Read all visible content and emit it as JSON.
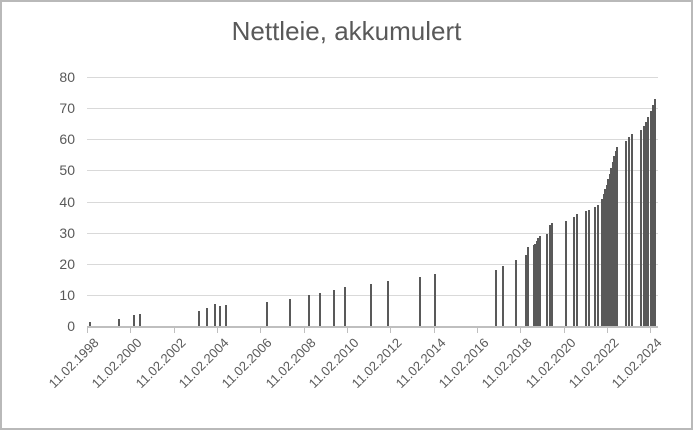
{
  "frame": {
    "background": "#ffffff",
    "border_color": "#b9b9b9"
  },
  "colors": {
    "title": "#595959",
    "axis_labels": "#595959",
    "gridline": "#d9d9d9",
    "axis_line": "#bfbfbf",
    "bar": "#595959"
  },
  "chart_data": {
    "type": "bar",
    "title": "Nettleie, akkumulert",
    "xlabel": "",
    "ylabel": "",
    "legend": "none",
    "grid": "horizontal",
    "ylim": [
      0,
      80
    ],
    "yticks": [
      0,
      10,
      20,
      30,
      40,
      50,
      60,
      70,
      80
    ],
    "x_axis_type": "date",
    "x_tick_labels": [
      "11.02.1998",
      "11.02.2000",
      "11.02.2002",
      "11.02.2004",
      "11.02.2006",
      "11.02.2008",
      "11.02.2010",
      "11.02.2012",
      "11.02.2014",
      "11.02.2016",
      "11.02.2018",
      "11.02.2020",
      "11.02.2022",
      "11.02.2024"
    ],
    "x_tick_interval_years": 2,
    "x_axis_start_year": 1998.12,
    "points_note": "year is decimal-year position estimated from axis; value is accumulated nettleie read from gridlines",
    "points": [
      {
        "year": 1998.25,
        "value": 1.3
      },
      {
        "year": 1999.6,
        "value": 2.4
      },
      {
        "year": 2000.3,
        "value": 3.4
      },
      {
        "year": 2000.58,
        "value": 4.0
      },
      {
        "year": 2003.28,
        "value": 4.9
      },
      {
        "year": 2003.65,
        "value": 5.7
      },
      {
        "year": 2004.02,
        "value": 7.0
      },
      {
        "year": 2004.28,
        "value": 6.3
      },
      {
        "year": 2004.55,
        "value": 6.8
      },
      {
        "year": 2006.42,
        "value": 7.8
      },
      {
        "year": 2007.48,
        "value": 8.6
      },
      {
        "year": 2008.35,
        "value": 9.8
      },
      {
        "year": 2008.87,
        "value": 10.7
      },
      {
        "year": 2009.52,
        "value": 11.6
      },
      {
        "year": 2010.02,
        "value": 12.4
      },
      {
        "year": 2011.22,
        "value": 13.4
      },
      {
        "year": 2012.0,
        "value": 14.3
      },
      {
        "year": 2013.48,
        "value": 15.9
      },
      {
        "year": 2014.18,
        "value": 16.8
      },
      {
        "year": 2017.0,
        "value": 18.1
      },
      {
        "year": 2017.32,
        "value": 19.2
      },
      {
        "year": 2017.93,
        "value": 21.3
      },
      {
        "year": 2018.38,
        "value": 22.7
      },
      {
        "year": 2018.47,
        "value": 25.3
      },
      {
        "year": 2018.73,
        "value": 25.9
      },
      {
        "year": 2018.8,
        "value": 26.5
      },
      {
        "year": 2018.87,
        "value": 27.3
      },
      {
        "year": 2018.94,
        "value": 28.2
      },
      {
        "year": 2019.01,
        "value": 28.8
      },
      {
        "year": 2019.35,
        "value": 29.7
      },
      {
        "year": 2019.49,
        "value": 32.3
      },
      {
        "year": 2019.56,
        "value": 33.0
      },
      {
        "year": 2020.23,
        "value": 33.6
      },
      {
        "year": 2020.6,
        "value": 35.0
      },
      {
        "year": 2020.74,
        "value": 35.9
      },
      {
        "year": 2021.15,
        "value": 36.8
      },
      {
        "year": 2021.3,
        "value": 37.4
      },
      {
        "year": 2021.58,
        "value": 38.2
      },
      {
        "year": 2021.69,
        "value": 38.9
      },
      {
        "year": 2021.9,
        "value": 40.8
      },
      {
        "year": 2021.97,
        "value": 42.3
      },
      {
        "year": 2022.04,
        "value": 43.9
      },
      {
        "year": 2022.11,
        "value": 45.4
      },
      {
        "year": 2022.18,
        "value": 47.1
      },
      {
        "year": 2022.25,
        "value": 48.9
      },
      {
        "year": 2022.32,
        "value": 50.8
      },
      {
        "year": 2022.39,
        "value": 52.7
      },
      {
        "year": 2022.46,
        "value": 54.5
      },
      {
        "year": 2022.53,
        "value": 56.2
      },
      {
        "year": 2022.6,
        "value": 57.6
      },
      {
        "year": 2023.01,
        "value": 59.5
      },
      {
        "year": 2023.15,
        "value": 60.8
      },
      {
        "year": 2023.29,
        "value": 61.8
      },
      {
        "year": 2023.7,
        "value": 63.0
      },
      {
        "year": 2023.82,
        "value": 64.2
      },
      {
        "year": 2023.93,
        "value": 65.6
      },
      {
        "year": 2024.03,
        "value": 67.3
      },
      {
        "year": 2024.13,
        "value": 69.2
      },
      {
        "year": 2024.23,
        "value": 71.0
      },
      {
        "year": 2024.34,
        "value": 72.8
      }
    ]
  }
}
